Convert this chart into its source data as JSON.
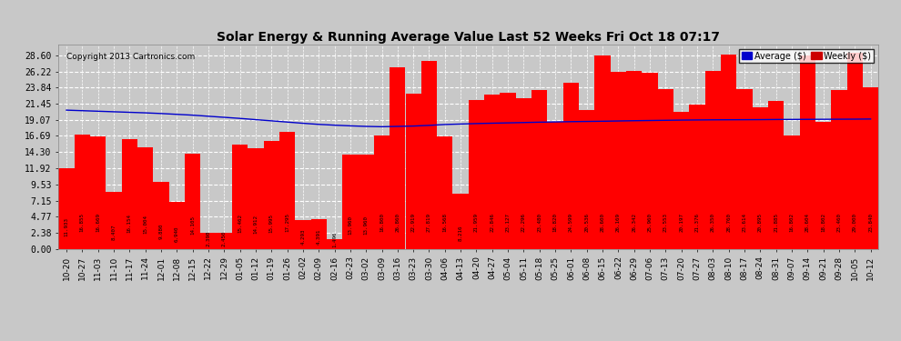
{
  "title": "Solar Energy & Running Average Value Last 52 Weeks Fri Oct 18 07:17",
  "copyright": "Copyright 2013 Cartronics.com",
  "bar_color": "#ff0000",
  "line_color": "#0000cc",
  "background_color": "#c8c8c8",
  "plot_bg_color": "#c8c8c8",
  "grid_color": "#ffffff",
  "yticks": [
    0.0,
    2.38,
    4.77,
    7.15,
    9.53,
    11.92,
    14.3,
    16.69,
    19.07,
    21.45,
    23.84,
    26.22,
    28.6
  ],
  "legend_avg_color": "#0000cc",
  "legend_weekly_color": "#cc0000",
  "categories": [
    "10-20",
    "10-27",
    "11-03",
    "11-10",
    "11-17",
    "11-24",
    "12-01",
    "12-08",
    "12-15",
    "12-22",
    "12-29",
    "01-05",
    "01-12",
    "01-19",
    "01-26",
    "02-02",
    "02-09",
    "02-16",
    "02-23",
    "03-02",
    "03-09",
    "03-16",
    "03-23",
    "03-30",
    "04-06",
    "04-13",
    "04-20",
    "04-27",
    "05-04",
    "05-11",
    "05-18",
    "05-25",
    "06-01",
    "06-08",
    "06-15",
    "06-22",
    "06-29",
    "07-06",
    "07-13",
    "07-20",
    "07-27",
    "08-03",
    "08-10",
    "08-17",
    "08-24",
    "08-31",
    "09-07",
    "09-14",
    "09-21",
    "09-28",
    "10-05",
    "10-12"
  ],
  "bar_values": [
    11.933,
    16.855,
    16.669,
    8.407,
    16.154,
    15.004,
    9.88,
    6.94,
    14.105,
    2.398,
    2.45,
    15.462,
    14.912,
    15.995,
    17.295,
    4.293,
    4.391,
    1.496,
    13.96,
    13.96,
    16.8,
    26.86,
    22.919,
    27.819,
    16.568,
    8.216,
    21.959,
    22.846,
    23.127,
    22.296,
    23.48,
    18.82,
    24.599,
    20.536,
    28.6,
    26.169,
    26.342,
    25.96,
    23.553,
    20.197,
    21.376,
    26.35,
    28.76,
    23.614,
    20.895,
    21.885,
    16.802,
    28.604,
    18.802,
    23.46,
    29.0,
    23.84
  ],
  "avg_values": [
    20.5,
    20.42,
    20.34,
    20.26,
    20.18,
    20.1,
    20.0,
    19.88,
    19.76,
    19.6,
    19.44,
    19.28,
    19.1,
    18.92,
    18.74,
    18.56,
    18.4,
    18.28,
    18.18,
    18.1,
    18.05,
    18.1,
    18.15,
    18.25,
    18.38,
    18.45,
    18.52,
    18.57,
    18.62,
    18.67,
    18.72,
    18.76,
    18.8,
    18.83,
    18.86,
    18.9,
    18.94,
    18.97,
    19.0,
    19.03,
    19.05,
    19.07,
    19.08,
    19.09,
    19.1,
    19.12,
    19.13,
    19.14,
    19.15,
    19.16,
    19.17,
    19.19
  ],
  "ylim_max": 30.22
}
